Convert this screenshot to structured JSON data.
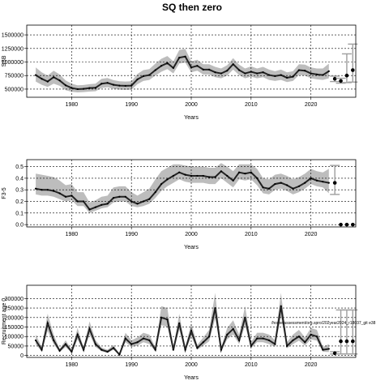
{
  "title": "SQ then zero",
  "footnote": "/home/assessment/org.spro/202year2024_r18037_git e38",
  "colors": {
    "band": "#bdbdbd",
    "line": "#222222",
    "proj": "#9e9e9e",
    "grid": "#000000"
  },
  "chart_data": [
    {
      "type": "line",
      "id": "ssb",
      "xlabel": "Years",
      "ylabel": "SSB",
      "xlim": [
        1972.5,
        2027.5
      ],
      "ylim": [
        350000,
        1680000
      ],
      "xticks": [
        1980,
        1990,
        2000,
        2010,
        2020
      ],
      "yticks": [
        500000,
        750000,
        1000000,
        1250000,
        1500000
      ],
      "ytick_labels": [
        "500000",
        "750000",
        "1000000",
        "1250000",
        "1500000"
      ],
      "x": [
        1974,
        1975,
        1976,
        1977,
        1978,
        1979,
        1980,
        1981,
        1982,
        1983,
        1984,
        1985,
        1986,
        1987,
        1988,
        1989,
        1990,
        1991,
        1992,
        1993,
        1994,
        1995,
        1996,
        1997,
        1998,
        1999,
        2000,
        2001,
        2002,
        2003,
        2004,
        2005,
        2006,
        2007,
        2008,
        2009,
        2010,
        2011,
        2012,
        2013,
        2014,
        2015,
        2016,
        2017,
        2018,
        2019,
        2020,
        2021,
        2022,
        2023
      ],
      "y": [
        760000,
        690000,
        640000,
        720000,
        660000,
        570000,
        520000,
        500000,
        505000,
        520000,
        525000,
        600000,
        615000,
        580000,
        565000,
        560000,
        565000,
        680000,
        740000,
        760000,
        850000,
        930000,
        980000,
        890000,
        1080000,
        1100000,
        900000,
        930000,
        860000,
        860000,
        810000,
        790000,
        840000,
        960000,
        850000,
        790000,
        820000,
        790000,
        810000,
        760000,
        740000,
        760000,
        710000,
        730000,
        850000,
        840000,
        790000,
        770000,
        760000,
        830000
      ],
      "band_lower": [
        640000,
        580000,
        540000,
        600000,
        560000,
        480000,
        450000,
        440000,
        445000,
        455000,
        460000,
        520000,
        535000,
        505000,
        490000,
        485000,
        490000,
        590000,
        650000,
        670000,
        750000,
        820000,
        870000,
        790000,
        970000,
        990000,
        810000,
        840000,
        770000,
        770000,
        720000,
        700000,
        750000,
        860000,
        760000,
        700000,
        730000,
        700000,
        720000,
        670000,
        650000,
        670000,
        630000,
        650000,
        760000,
        750000,
        700000,
        680000,
        670000,
        700000
      ],
      "band_upper": [
        900000,
        810000,
        750000,
        840000,
        770000,
        660000,
        600000,
        570000,
        575000,
        590000,
        600000,
        690000,
        705000,
        665000,
        645000,
        640000,
        645000,
        780000,
        850000,
        870000,
        970000,
        1060000,
        1110000,
        1010000,
        1220000,
        1240000,
        1010000,
        1040000,
        960000,
        960000,
        910000,
        880000,
        940000,
        1070000,
        950000,
        880000,
        920000,
        880000,
        910000,
        860000,
        830000,
        860000,
        810000,
        830000,
        960000,
        950000,
        900000,
        880000,
        880000,
        970000
      ],
      "projection": {
        "x": [
          2024,
          2025,
          2026,
          2027
        ],
        "y": [
          690000,
          650000,
          750000,
          850000
        ],
        "lower": [
          640000,
          610000,
          620000,
          630000
        ],
        "upper": [
          740000,
          700000,
          1150000,
          1330000
        ]
      }
    },
    {
      "type": "line",
      "id": "fbar",
      "xlabel": "Years",
      "ylabel": "F3-5",
      "xlim": [
        1972.5,
        2027.5
      ],
      "ylim": [
        -0.02,
        0.56
      ],
      "xticks": [
        1980,
        1990,
        2000,
        2010,
        2020
      ],
      "yticks": [
        0.0,
        0.1,
        0.2,
        0.3,
        0.4,
        0.5
      ],
      "ytick_labels": [
        "0.0",
        "0.1",
        "0.2",
        "0.3",
        "0.4",
        "0.5"
      ],
      "x": [
        1974,
        1975,
        1976,
        1977,
        1978,
        1979,
        1980,
        1981,
        1982,
        1983,
        1984,
        1985,
        1986,
        1987,
        1988,
        1989,
        1990,
        1991,
        1992,
        1993,
        1994,
        1995,
        1996,
        1997,
        1998,
        1999,
        2000,
        2001,
        2002,
        2003,
        2004,
        2005,
        2006,
        2007,
        2008,
        2009,
        2010,
        2011,
        2012,
        2013,
        2014,
        2015,
        2016,
        2017,
        2018,
        2019,
        2020,
        2021,
        2022,
        2023
      ],
      "y": [
        0.31,
        0.3,
        0.3,
        0.29,
        0.27,
        0.24,
        0.25,
        0.2,
        0.2,
        0.13,
        0.15,
        0.17,
        0.18,
        0.23,
        0.24,
        0.24,
        0.2,
        0.18,
        0.2,
        0.22,
        0.28,
        0.35,
        0.39,
        0.42,
        0.45,
        0.43,
        0.42,
        0.42,
        0.42,
        0.41,
        0.41,
        0.46,
        0.42,
        0.38,
        0.45,
        0.44,
        0.45,
        0.4,
        0.32,
        0.31,
        0.35,
        0.36,
        0.34,
        0.31,
        0.33,
        0.36,
        0.4,
        0.38,
        0.37,
        0.36
      ],
      "band_lower": [
        0.26,
        0.25,
        0.25,
        0.24,
        0.22,
        0.2,
        0.21,
        0.16,
        0.16,
        0.1,
        0.12,
        0.14,
        0.15,
        0.19,
        0.2,
        0.2,
        0.16,
        0.15,
        0.16,
        0.18,
        0.23,
        0.29,
        0.33,
        0.36,
        0.39,
        0.37,
        0.36,
        0.36,
        0.36,
        0.35,
        0.35,
        0.4,
        0.36,
        0.32,
        0.39,
        0.38,
        0.39,
        0.34,
        0.27,
        0.26,
        0.3,
        0.31,
        0.29,
        0.26,
        0.28,
        0.31,
        0.35,
        0.33,
        0.32,
        0.27
      ],
      "band_upper": [
        0.44,
        0.43,
        0.42,
        0.41,
        0.38,
        0.34,
        0.35,
        0.28,
        0.28,
        0.19,
        0.21,
        0.24,
        0.25,
        0.32,
        0.33,
        0.33,
        0.28,
        0.25,
        0.28,
        0.31,
        0.39,
        0.46,
        0.49,
        0.52,
        0.52,
        0.51,
        0.5,
        0.5,
        0.5,
        0.49,
        0.49,
        0.53,
        0.5,
        0.46,
        0.52,
        0.52,
        0.52,
        0.48,
        0.4,
        0.39,
        0.43,
        0.44,
        0.42,
        0.39,
        0.41,
        0.44,
        0.48,
        0.46,
        0.45,
        0.48
      ],
      "projection": {
        "x": [
          2024,
          2025,
          2026,
          2027
        ],
        "y": [
          0.36,
          0.0,
          0.0,
          0.0
        ],
        "lower": [
          0.26,
          0.0,
          0.0,
          0.0
        ],
        "upper": [
          0.51,
          0.0,
          0.0,
          0.0
        ]
      }
    },
    {
      "type": "line",
      "id": "recruitment",
      "xlabel": "Years",
      "ylabel": "Recruitment age 0",
      "xlim": [
        1972.5,
        2027.5
      ],
      "ylim": [
        -10000,
        370000
      ],
      "xticks": [
        1980,
        1990,
        2000,
        2010,
        2020
      ],
      "yticks": [
        0,
        50000,
        100000,
        150000,
        200000,
        250000,
        300000
      ],
      "ytick_labels": [
        "0",
        "50000",
        "100000",
        "150000",
        "200000",
        "250000",
        "300000"
      ],
      "x": [
        1974,
        1975,
        1976,
        1977,
        1978,
        1979,
        1980,
        1981,
        1982,
        1983,
        1984,
        1985,
        1986,
        1987,
        1988,
        1989,
        1990,
        1991,
        1992,
        1993,
        1994,
        1995,
        1996,
        1997,
        1998,
        1999,
        2000,
        2001,
        2002,
        2003,
        2004,
        2005,
        2006,
        2007,
        2008,
        2009,
        2010,
        2011,
        2012,
        2013,
        2014,
        2015,
        2016,
        2017,
        2018,
        2019,
        2020,
        2021,
        2022,
        2023
      ],
      "y": [
        80000,
        30000,
        170000,
        80000,
        25000,
        60000,
        20000,
        110000,
        30000,
        140000,
        60000,
        30000,
        20000,
        40000,
        5000,
        90000,
        60000,
        70000,
        90000,
        80000,
        30000,
        200000,
        190000,
        30000,
        170000,
        30000,
        130000,
        40000,
        70000,
        100000,
        250000,
        30000,
        110000,
        140000,
        80000,
        200000,
        50000,
        90000,
        90000,
        80000,
        60000,
        260000,
        50000,
        80000,
        100000,
        70000,
        110000,
        100000,
        30000,
        35000
      ],
      "band_lower": [
        60000,
        20000,
        130000,
        60000,
        18000,
        45000,
        14000,
        85000,
        22000,
        110000,
        45000,
        22000,
        14000,
        30000,
        3000,
        70000,
        45000,
        52000,
        70000,
        60000,
        22000,
        160000,
        150000,
        22000,
        135000,
        22000,
        100000,
        30000,
        52000,
        75000,
        195000,
        22000,
        85000,
        110000,
        60000,
        160000,
        38000,
        70000,
        70000,
        60000,
        45000,
        205000,
        38000,
        60000,
        78000,
        52000,
        85000,
        78000,
        20000,
        18000
      ],
      "band_upper": [
        110000,
        45000,
        220000,
        110000,
        35000,
        80000,
        30000,
        145000,
        42000,
        180000,
        80000,
        42000,
        30000,
        55000,
        9000,
        120000,
        80000,
        95000,
        120000,
        110000,
        42000,
        260000,
        250000,
        42000,
        220000,
        42000,
        170000,
        55000,
        95000,
        135000,
        330000,
        42000,
        145000,
        185000,
        110000,
        260000,
        70000,
        120000,
        120000,
        110000,
        80000,
        330000,
        70000,
        110000,
        135000,
        95000,
        145000,
        135000,
        45000,
        60000
      ],
      "projection": {
        "x": [
          2024,
          2025,
          2026,
          2027
        ],
        "y": [
          12000,
          75000,
          75000,
          75000
        ],
        "lower": [
          8000,
          8000,
          8000,
          8000
        ],
        "upper": [
          20000,
          240000,
          240000,
          240000
        ]
      }
    }
  ]
}
